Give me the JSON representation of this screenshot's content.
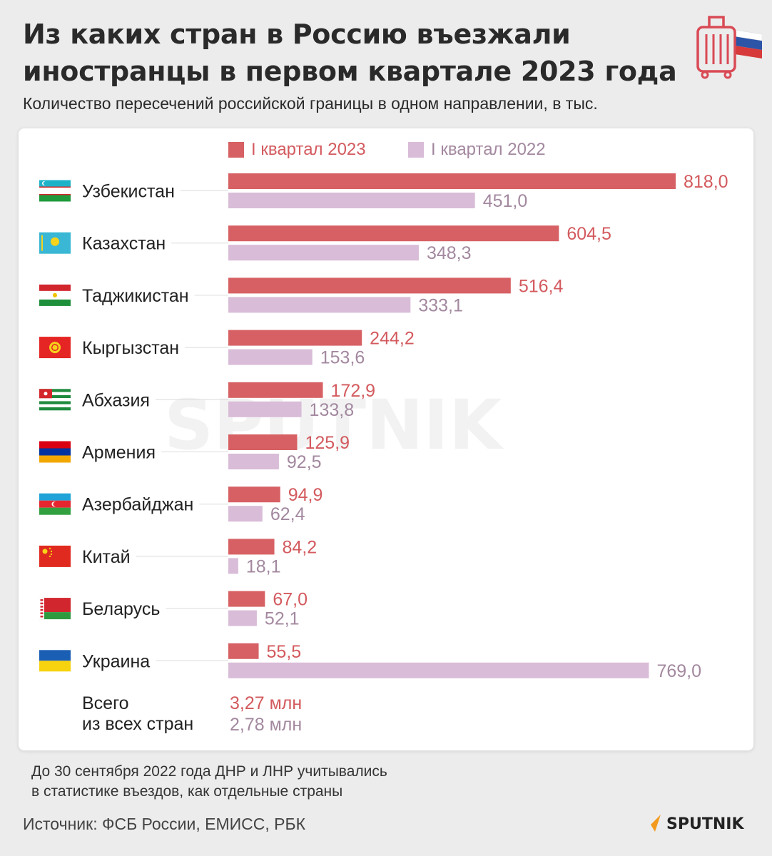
{
  "title": "Из каких стран в Россию въезжали иностранцы в первом квартале 2023 года",
  "subtitle": "Количество пересечений российской границы в одном направлении, в тыс.",
  "legend": {
    "q2023": "I квартал 2023",
    "q2022": "I квартал 2022"
  },
  "colors": {
    "q2023": "#d66063",
    "q2022": "#d9bcd8",
    "label2023": "#d35a5e",
    "label2022": "#a3889f"
  },
  "chart_data": {
    "type": "bar",
    "orientation": "horizontal",
    "categories": [
      "Узбекистан",
      "Казахстан",
      "Таджикистан",
      "Кыргызстан",
      "Абхазия",
      "Армения",
      "Азербайджан",
      "Китай",
      "Беларусь",
      "Украина"
    ],
    "flags": [
      "uzbekistan-flag",
      "kazakhstan-flag",
      "tajikistan-flag",
      "kyrgyzstan-flag",
      "abkhazia-flag",
      "armenia-flag",
      "azerbaijan-flag",
      "china-flag",
      "belarus-flag",
      "ukraine-flag"
    ],
    "series": [
      {
        "name": "I квартал 2023",
        "values": [
          818.0,
          604.5,
          516.4,
          244.2,
          172.9,
          125.9,
          94.9,
          84.2,
          67.0,
          55.5
        ],
        "labels": [
          "818,0",
          "604,5",
          "516,4",
          "244,2",
          "172,9",
          "125,9",
          "94,9",
          "84,2",
          "67,0",
          "55,5"
        ]
      },
      {
        "name": "I квартал 2022",
        "values": [
          451.0,
          348.3,
          333.1,
          153.6,
          133.8,
          92.5,
          62.4,
          18.1,
          52.1,
          769.0
        ],
        "labels": [
          "451,0",
          "348,3",
          "333,1",
          "153,6",
          "133,8",
          "92,5",
          "62,4",
          "18,1",
          "52,1",
          "769,0"
        ]
      }
    ],
    "total": {
      "label_line1": "Всего",
      "label_line2": "из всех стран",
      "q2023": "3,27 млн",
      "q2022": "2,78 млн"
    }
  },
  "footnote": {
    "line1": "До 30 сентября 2022 года ДНР и ЛНР учитывались",
    "line2": "в статистике въездов, как отдельные страны"
  },
  "source": "Источник: ФСБ России, ЕМИСС, РБК",
  "brand": "SPUTNIK",
  "watermark": "SPUTNIK"
}
